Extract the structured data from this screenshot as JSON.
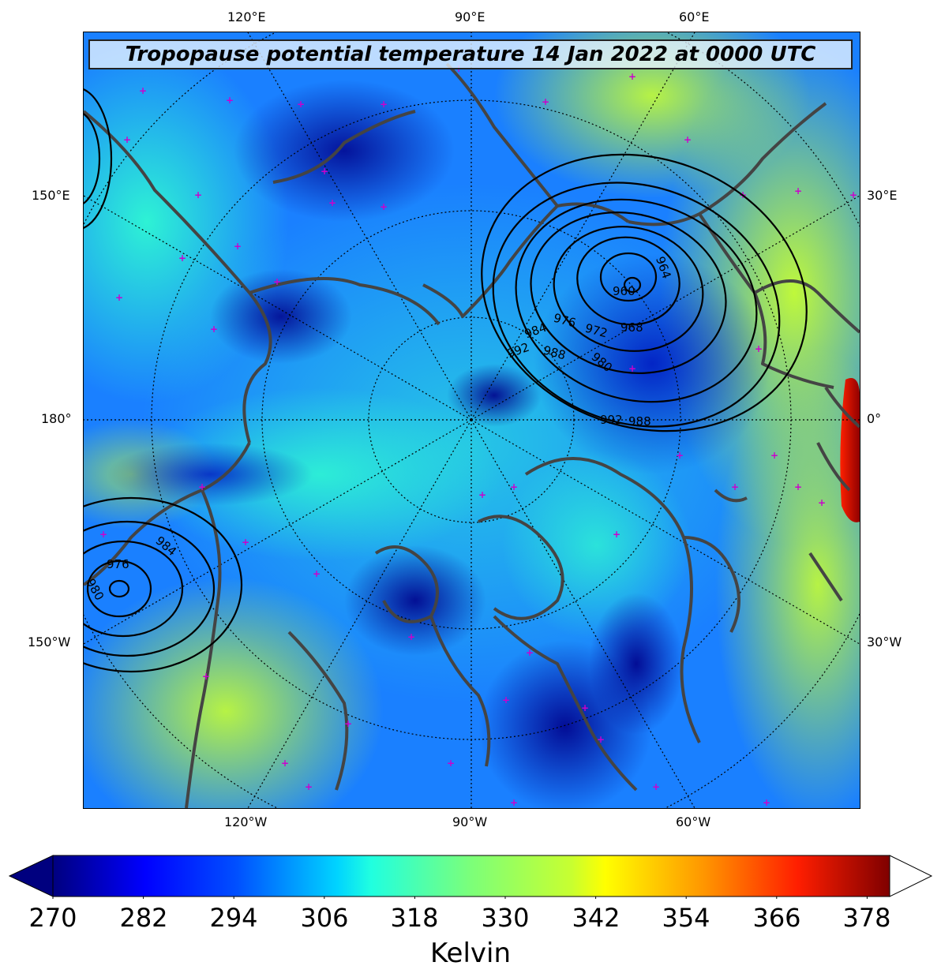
{
  "title": "Tropopause potential temperature 14 Jan 2022 at 0000 UTC",
  "longitude_labels": {
    "top": [
      "120°E",
      "90°E",
      "60°E"
    ],
    "bottom": [
      "120°W",
      "90°W",
      "60°W"
    ],
    "left": [
      "150°E",
      "180°",
      "150°W"
    ],
    "right": [
      "30°E",
      "0°",
      "30°W"
    ]
  },
  "pressure_contour_labels": [
    "960",
    "964",
    "968",
    "972",
    "976",
    "980",
    "984",
    "988",
    "992",
    "988",
    "992",
    "976",
    "980",
    "984"
  ],
  "colorbar": {
    "label": "Kelvin",
    "ticks": [
      "270",
      "282",
      "294",
      "306",
      "318",
      "330",
      "342",
      "354",
      "366",
      "378"
    ],
    "min": 270,
    "max": 381,
    "colormap": "jet",
    "extend": "both"
  },
  "colors": {
    "coast": "#444444",
    "contour": "#000000",
    "marker": "#cc00cc"
  }
}
